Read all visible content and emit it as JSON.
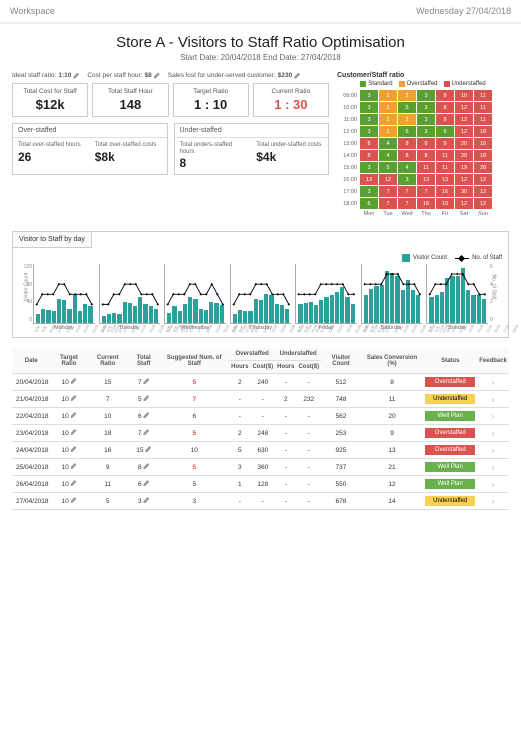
{
  "header": {
    "workspace": "Workspace",
    "date": "Wednesday 27/04/2018"
  },
  "title": "Store A - Visitors to Staff Ratio Optimisation",
  "subtitle": "Start Date: 20/04/2018    End Date: 27/04/2018",
  "params": {
    "ideal_ratio_lbl": "Ideal staff ratio:",
    "ideal_ratio_val": "1:10",
    "cost_hour_lbl": "Cost per staff hour:",
    "cost_hour_val": "$8",
    "sales_lost_lbl": "Sales lost for under-served customer:",
    "sales_lost_val": "$230"
  },
  "cards": {
    "total_cost_lbl": "Total Cost for Staff",
    "total_cost_val": "$12k",
    "total_hours_lbl": "Total Staff Hour",
    "total_hours_val": "148",
    "target_lbl": "Target Ratio",
    "target_val": "1 : 10",
    "current_lbl": "Current Ratio",
    "current_val": "1 : 30"
  },
  "over": {
    "title": "Over-staffed",
    "hours_lbl": "Total over-staffed hours",
    "hours_val": "26",
    "cost_lbl": "Total over-staffed costs",
    "cost_val": "$8k"
  },
  "under": {
    "title": "Under-staffed",
    "hours_lbl": "Total unders-staffed hours",
    "hours_val": "8",
    "cost_lbl": "Total under-staffed costs",
    "cost_val": "$4k"
  },
  "heat": {
    "title": "Customer/Staff ratio",
    "legend": {
      "standard": "Standard",
      "over": "Overstaffed",
      "under": "Understaffed"
    },
    "colors": {
      "g": "#5aa02c",
      "o": "#f0a030",
      "r": "#d9534f"
    },
    "rows": [
      "09:00",
      "10:00",
      "11:00",
      "12:00",
      "13:00",
      "14:00",
      "15:00",
      "16:00",
      "17:00",
      "18:00"
    ],
    "cols": [
      "Mon",
      "Tue",
      "Wed",
      "Thu",
      "Fri",
      "Sat",
      "Sun"
    ],
    "cells": [
      [
        [
          "3",
          "g"
        ],
        [
          "1",
          "o"
        ],
        [
          "2",
          "o"
        ],
        [
          "3",
          "g"
        ],
        [
          "8",
          "r"
        ],
        [
          "10",
          "r"
        ],
        [
          "11",
          "r"
        ]
      ],
      [
        [
          "3",
          "g"
        ],
        [
          "1",
          "o"
        ],
        [
          "5",
          "g"
        ],
        [
          "3",
          "g"
        ],
        [
          "8",
          "r"
        ],
        [
          "12",
          "r"
        ],
        [
          "11",
          "r"
        ]
      ],
      [
        [
          "3",
          "g"
        ],
        [
          "2",
          "o"
        ],
        [
          "2",
          "o"
        ],
        [
          "3",
          "g"
        ],
        [
          "8",
          "r"
        ],
        [
          "12",
          "r"
        ],
        [
          "11",
          "r"
        ]
      ],
      [
        [
          "3",
          "g"
        ],
        [
          "1",
          "o"
        ],
        [
          "6",
          "g"
        ],
        [
          "3",
          "g"
        ],
        [
          "6",
          "g"
        ],
        [
          "12",
          "r"
        ],
        [
          "18",
          "r"
        ]
      ],
      [
        [
          "8",
          "r"
        ],
        [
          "4",
          "g"
        ],
        [
          "8",
          "r"
        ],
        [
          "8",
          "r"
        ],
        [
          "9",
          "r"
        ],
        [
          "20",
          "r"
        ],
        [
          "18",
          "r"
        ]
      ],
      [
        [
          "8",
          "r"
        ],
        [
          "4",
          "g"
        ],
        [
          "8",
          "r"
        ],
        [
          "8",
          "r"
        ],
        [
          "11",
          "r"
        ],
        [
          "20",
          "r"
        ],
        [
          "18",
          "r"
        ]
      ],
      [
        [
          "3",
          "g"
        ],
        [
          "5",
          "g"
        ],
        [
          "4",
          "g"
        ],
        [
          "11",
          "r"
        ],
        [
          "11",
          "r"
        ],
        [
          "19",
          "r"
        ],
        [
          "28",
          "r"
        ]
      ],
      [
        [
          "13",
          "r"
        ],
        [
          "12",
          "r"
        ],
        [
          "3",
          "g"
        ],
        [
          "13",
          "r"
        ],
        [
          "13",
          "r"
        ],
        [
          "12",
          "r"
        ],
        [
          "12",
          "r"
        ]
      ],
      [
        [
          "3",
          "g"
        ],
        [
          "7",
          "r"
        ],
        [
          "7",
          "r"
        ],
        [
          "7",
          "r"
        ],
        [
          "16",
          "r"
        ],
        [
          "30",
          "r"
        ],
        [
          "12",
          "r"
        ]
      ],
      [
        [
          "6",
          "g"
        ],
        [
          "7",
          "r"
        ],
        [
          "7",
          "r"
        ],
        [
          "16",
          "r"
        ],
        [
          "10",
          "r"
        ],
        [
          "12",
          "r"
        ],
        [
          "12",
          "r"
        ]
      ]
    ]
  },
  "bar_section": {
    "tab": "Visitor to Staff by day",
    "legend": {
      "visitor": "Visitor Count",
      "staff": "No. of Staff"
    },
    "ylabel_left": "Visitor Count",
    "ylabel_right": "No. of Staff",
    "yticks_left": [
      "120",
      "80",
      "40",
      "0"
    ],
    "yticks_right": [
      "6",
      "4",
      "2",
      "0"
    ],
    "days": [
      "Monday",
      "Tuesday",
      "Wednesday",
      "Thursday",
      "Friday",
      "Saturday",
      "Sunday"
    ],
    "hours": [
      "8:00",
      "9:00",
      "10:00",
      "11:00",
      "12:00",
      "13:00",
      "14:00",
      "15:00",
      "16:00",
      "17:00",
      "18:00"
    ],
    "series": {
      "Monday": {
        "v": [
          20,
          30,
          28,
          25,
          50,
          48,
          30,
          60,
          25,
          40,
          35
        ],
        "s": [
          2,
          3,
          3,
          3,
          4,
          4,
          3,
          3,
          3,
          3,
          2
        ]
      },
      "Tuesday": {
        "v": [
          15,
          20,
          22,
          18,
          45,
          42,
          35,
          55,
          40,
          35,
          30
        ],
        "s": [
          2,
          2,
          3,
          3,
          4,
          4,
          4,
          3,
          3,
          3,
          2
        ]
      },
      "Wednesday": {
        "v": [
          22,
          35,
          25,
          40,
          55,
          50,
          30,
          28,
          45,
          42,
          38
        ],
        "s": [
          2,
          3,
          3,
          3,
          4,
          4,
          3,
          3,
          4,
          3,
          2
        ]
      },
      "Thursday": {
        "v": [
          20,
          28,
          26,
          25,
          50,
          48,
          62,
          60,
          40,
          38,
          30
        ],
        "s": [
          2,
          3,
          3,
          3,
          4,
          4,
          4,
          3,
          3,
          3,
          2
        ]
      },
      "Friday": {
        "v": [
          40,
          42,
          44,
          38,
          48,
          55,
          58,
          65,
          75,
          55,
          40
        ],
        "s": [
          3,
          3,
          3,
          3,
          4,
          4,
          4,
          4,
          4,
          3,
          3
        ]
      },
      "Saturday": {
        "v": [
          60,
          72,
          78,
          80,
          110,
          105,
          100,
          70,
          90,
          70,
          60
        ],
        "s": [
          4,
          4,
          4,
          4,
          5,
          5,
          5,
          4,
          4,
          4,
          3
        ]
      },
      "Sunday": {
        "v": [
          55,
          60,
          65,
          95,
          100,
          98,
          115,
          70,
          60,
          58,
          50
        ],
        "s": [
          3,
          4,
          4,
          4,
          5,
          5,
          5,
          4,
          4,
          3,
          3
        ]
      }
    },
    "vmax": 120,
    "smax": 6
  },
  "table": {
    "headers": [
      "Date",
      "Target Ratio",
      "Current Ratio",
      "Total Staff",
      "Suggested Num. of Staff",
      "Overstaffed Hours",
      "Overstaffed Cost($)",
      "Understaffed Hours",
      "Understaffed Cost($)",
      "Visitor Count",
      "Sales Conversion (%)",
      "Status",
      "Feedback"
    ],
    "rows": [
      {
        "date": "20/04/2018",
        "tr": "10",
        "cr": "15",
        "ts": "7",
        "sn": "5",
        "snred": true,
        "oh": "2",
        "oc": "240",
        "uh": "-",
        "uc": "-",
        "vc": "512",
        "sc": "8",
        "status": "Overstaffed",
        "stclass": "st-over"
      },
      {
        "date": "21/04/2018",
        "tr": "10",
        "cr": "7",
        "ts": "5",
        "sn": "7",
        "snred": true,
        "oh": "-",
        "oc": "-",
        "uh": "2",
        "uc": "232",
        "vc": "748",
        "sc": "11",
        "status": "Understaffed",
        "stclass": "st-under"
      },
      {
        "date": "22/04/2018",
        "tr": "10",
        "cr": "10",
        "ts": "6",
        "sn": "6",
        "oh": "-",
        "oc": "-",
        "uh": "-",
        "uc": "-",
        "vc": "562",
        "sc": "20",
        "status": "Well Plan",
        "stclass": "st-well"
      },
      {
        "date": "23/04/2018",
        "tr": "10",
        "cr": "18",
        "ts": "7",
        "sn": "5",
        "snred": true,
        "oh": "2",
        "oc": "248",
        "uh": "-",
        "uc": "-",
        "vc": "253",
        "sc": "9",
        "status": "Overstaffed",
        "stclass": "st-over"
      },
      {
        "date": "24/04/2018",
        "tr": "10",
        "cr": "16",
        "ts": "15",
        "sn": "10",
        "oh": "5",
        "oc": "630",
        "uh": "-",
        "uc": "-",
        "vc": "925",
        "sc": "13",
        "status": "Overstaffed",
        "stclass": "st-over"
      },
      {
        "date": "25/04/2018",
        "tr": "10",
        "cr": "9",
        "ts": "8",
        "sn": "5",
        "snred": true,
        "oh": "3",
        "oc": "360",
        "uh": "-",
        "uc": "-",
        "vc": "737",
        "sc": "21",
        "status": "Well Plan",
        "stclass": "st-well"
      },
      {
        "date": "26/04/2018",
        "tr": "10",
        "cr": "11",
        "ts": "6",
        "sn": "5",
        "oh": "1",
        "oc": "128",
        "uh": "-",
        "uc": "-",
        "vc": "550",
        "sc": "12",
        "status": "Well Plan",
        "stclass": "st-well"
      },
      {
        "date": "27/04/2018",
        "tr": "10",
        "cr": "5",
        "ts": "3",
        "sn": "3",
        "oh": "-",
        "oc": "-",
        "uh": "-",
        "uc": "-",
        "vc": "678",
        "sc": "14",
        "status": "Understaffed",
        "stclass": "st-under"
      }
    ]
  }
}
